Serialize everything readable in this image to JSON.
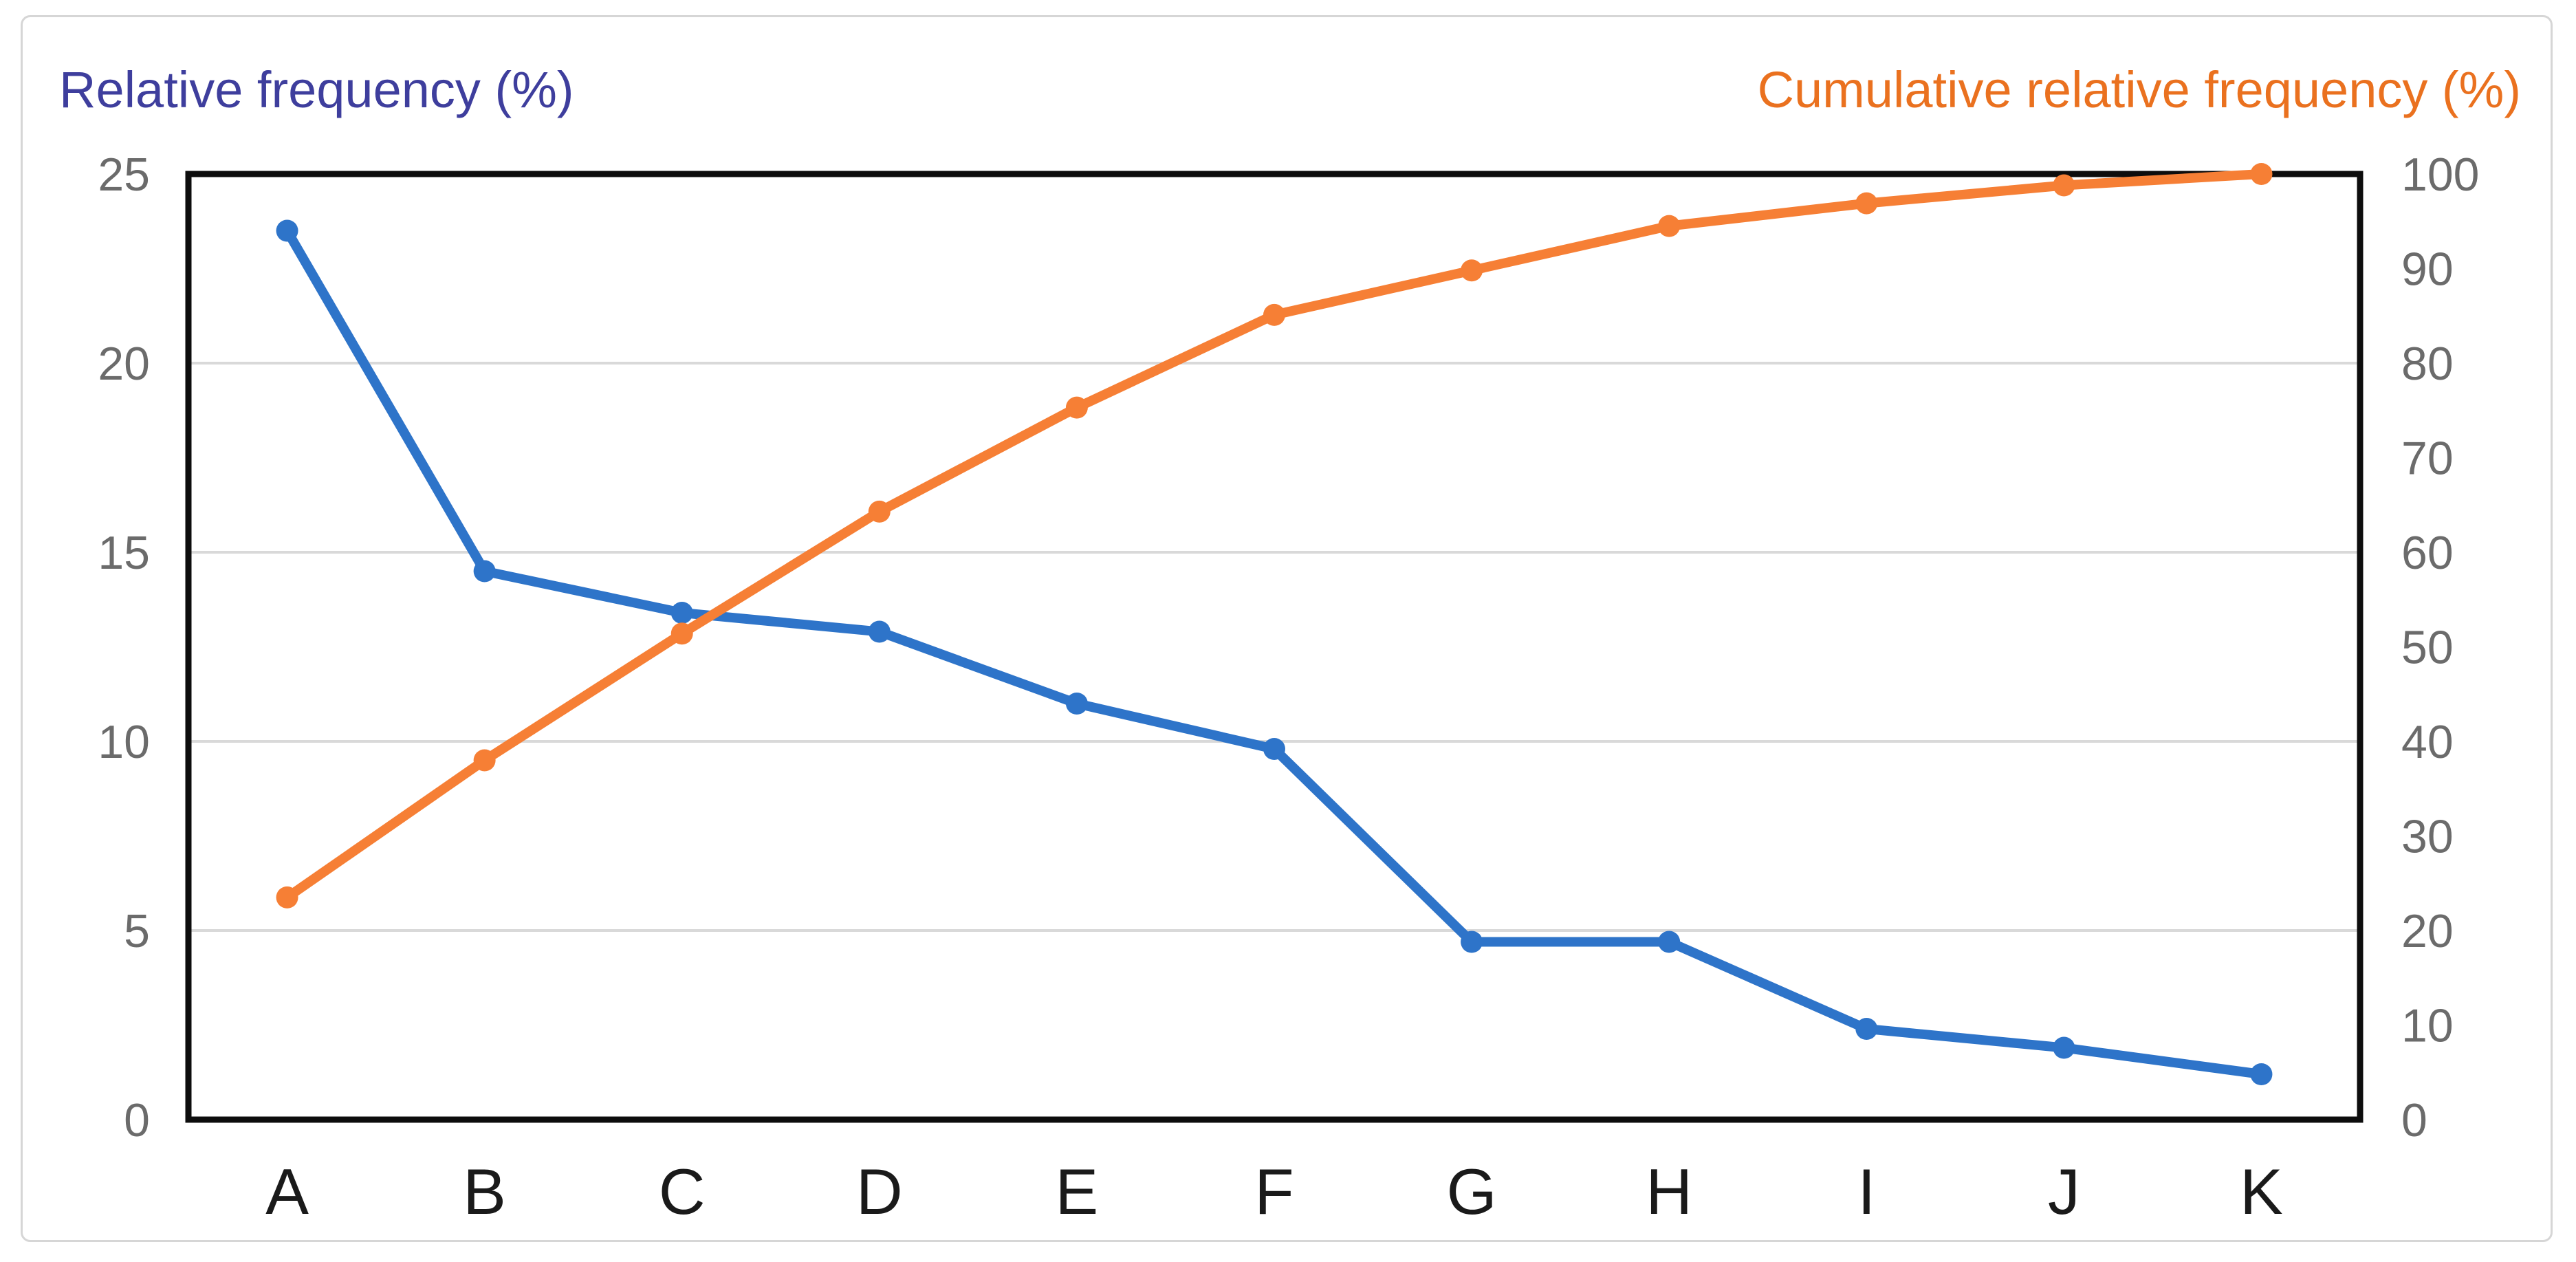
{
  "chart_data": {
    "type": "line",
    "subtype": "pareto-dual-axis",
    "categories": [
      "A",
      "B",
      "C",
      "D",
      "E",
      "F",
      "G",
      "H",
      "I",
      "J",
      "K"
    ],
    "series": [
      {
        "name": "Relative frequency (%)",
        "axis": "left",
        "color": "#2e74c9",
        "marker": "circle",
        "values": [
          23.5,
          14.5,
          13.4,
          12.9,
          11.0,
          9.8,
          4.7,
          4.7,
          2.4,
          1.9,
          1.2
        ]
      },
      {
        "name": "Cumulative relative frequency (%)",
        "axis": "right",
        "color": "#f67f35",
        "marker": "circle",
        "values": [
          23.5,
          38.0,
          51.4,
          64.3,
          75.3,
          85.1,
          89.8,
          94.5,
          96.9,
          98.8,
          100.0
        ]
      }
    ],
    "left_axis": {
      "label": "Relative frequency (%)",
      "min": 0,
      "max": 25,
      "ticks": [
        0,
        5,
        10,
        15,
        20,
        25
      ]
    },
    "right_axis": {
      "label": "Cumulative relative frequency (%)",
      "min": 0,
      "max": 100,
      "ticks": [
        0,
        10,
        20,
        30,
        40,
        50,
        60,
        70,
        80,
        90,
        100
      ]
    },
    "grid": "horizontal",
    "legend": "none",
    "colors": {
      "left_title": "#3e3e9d",
      "right_title": "#ea711f",
      "tick_label": "#6b6b6b",
      "category_label": "#1a1a1a",
      "gridline": "#d9d9d9",
      "plot_border": "#0d0d0d",
      "frame": "#d6d6d6",
      "background": "#ffffff"
    }
  }
}
